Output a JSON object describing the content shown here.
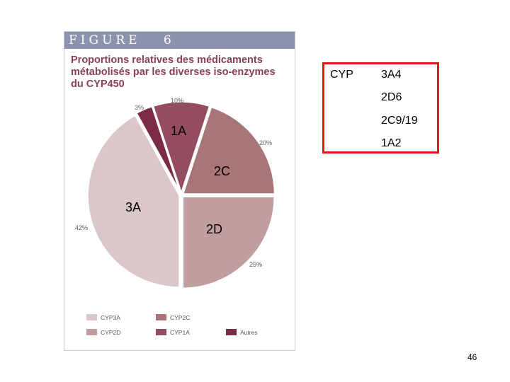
{
  "figure": {
    "label": "FIGURE",
    "number": "6",
    "title_lines": [
      "Proportions relatives des médicaments",
      "métabolisés par les diverses iso-enzymes",
      "du CYP450"
    ]
  },
  "chart_data": {
    "type": "pie",
    "title": "Proportions relatives des médicaments métabolisés par les diverses iso-enzymes du CYP450",
    "slices": [
      {
        "name": "CYP3A",
        "value": 42,
        "label": "42%",
        "color": "#dcc7c8"
      },
      {
        "name": "Autres",
        "value": 3,
        "label": "3%",
        "color": "#7b2b46"
      },
      {
        "name": "CYP1A",
        "value": 10,
        "label": "10%",
        "color": "#944d5f"
      },
      {
        "name": "CYP2C",
        "value": 20,
        "label": "20%",
        "color": "#a87679"
      },
      {
        "name": "CYP2D",
        "value": 25,
        "label": "25%",
        "color": "#c09d9f"
      }
    ],
    "legend": {
      "placement": "bottom",
      "entries": [
        "CYP3A",
        "CYP2C",
        "CYP2D",
        "CYP1A",
        "Autres"
      ]
    }
  },
  "overlay_labels": {
    "one_a": "1A",
    "two_c": "2C",
    "three_a": "3A",
    "two_d": "2D"
  },
  "callout": {
    "heading": "CYP",
    "items": [
      "3A4",
      "2D6",
      "2C9/19",
      "1A2"
    ]
  },
  "page_number": "46"
}
